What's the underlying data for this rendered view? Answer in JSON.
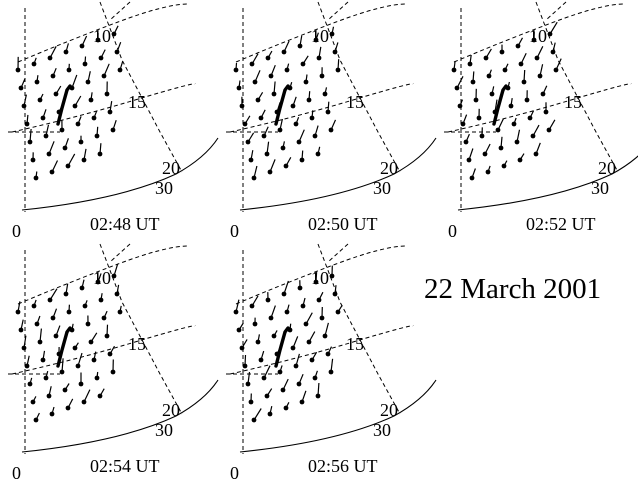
{
  "date_label": "22 March 2001",
  "panels": [
    {
      "time": "02:48 UT",
      "mlat_labels": [
        "10",
        "15",
        "20"
      ],
      "range_label": "30",
      "origin_label": "0"
    },
    {
      "time": "02:50 UT",
      "mlat_labels": [
        "10",
        "15",
        "20"
      ],
      "range_label": "30",
      "origin_label": "0"
    },
    {
      "time": "02:52 UT",
      "mlat_labels": [
        "10",
        "15",
        "20"
      ],
      "range_label": "30",
      "origin_label": "0"
    },
    {
      "time": "02:54 UT",
      "mlat_labels": [
        "10",
        "15",
        "20"
      ],
      "range_label": "30",
      "origin_label": "0"
    },
    {
      "time": "02:56 UT",
      "mlat_labels": [
        "10",
        "15",
        "20"
      ],
      "range_label": "30",
      "origin_label": "0"
    }
  ],
  "colors": {
    "ink": "#000000",
    "background": "#ffffff"
  }
}
